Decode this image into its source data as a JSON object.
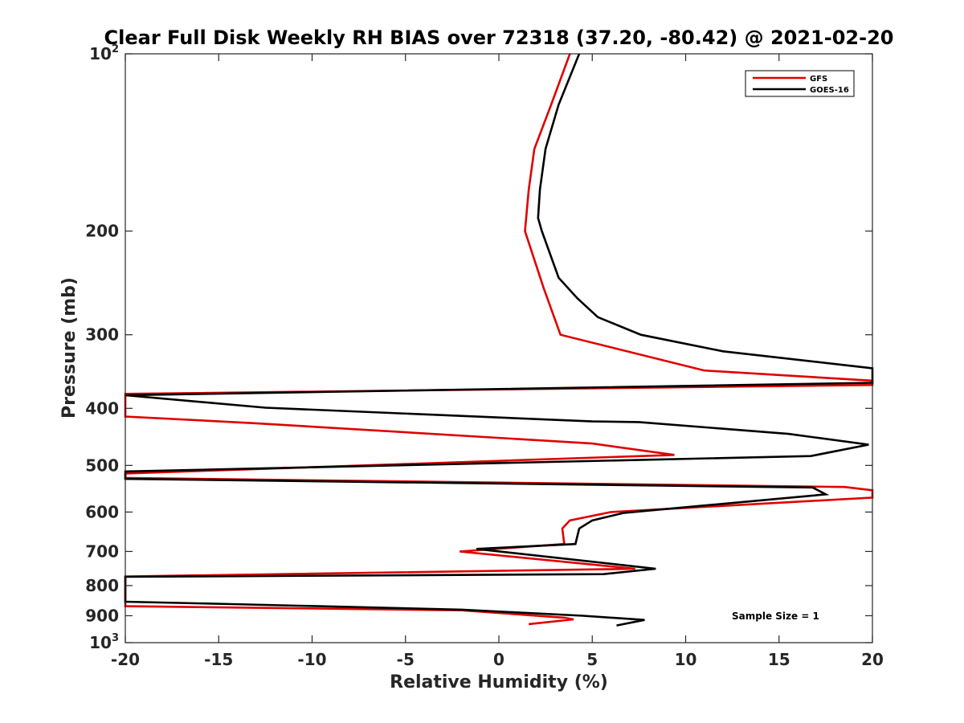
{
  "chart_data": {
    "type": "line",
    "title": "Clear Full Disk Weekly RH BIAS over 72318 (37.20, -80.42) @ 2021-02-20",
    "xlabel": "Relative Humidity (%)",
    "ylabel": "Pressure (mb)",
    "xlim": [
      -20,
      20
    ],
    "ylim": [
      1000,
      100
    ],
    "y_scale": "log",
    "y_reversed": true,
    "grid": false,
    "legend_position": "top-right",
    "x_ticks": [
      "-20",
      "-15",
      "-10",
      "-5",
      "0",
      "5",
      "10",
      "15",
      "20"
    ],
    "y_ticks": [
      {
        "value": 100,
        "base": "10",
        "exp": "2"
      },
      {
        "value": 200,
        "label": "200"
      },
      {
        "value": 300,
        "label": "300"
      },
      {
        "value": 400,
        "label": "400"
      },
      {
        "value": 500,
        "label": "500"
      },
      {
        "value": 600,
        "label": "600"
      },
      {
        "value": 700,
        "label": "700"
      },
      {
        "value": 800,
        "label": "800"
      },
      {
        "value": 900,
        "label": "900"
      },
      {
        "value": 1000,
        "base": "10",
        "exp": "3"
      }
    ],
    "annotation": "Sample Size = 1",
    "series": [
      {
        "name": "GFS",
        "color": "#e00000",
        "points": [
          [
            3.8,
            100
          ],
          [
            2.8,
            122
          ],
          [
            1.9,
            145
          ],
          [
            1.6,
            170
          ],
          [
            1.4,
            200
          ],
          [
            2.4,
            250
          ],
          [
            3.3,
            300
          ],
          [
            11.0,
            345
          ],
          [
            20,
            359
          ],
          [
            20,
            365
          ],
          [
            -20,
            378
          ],
          [
            -20,
            413
          ],
          [
            -13,
            424
          ],
          [
            5,
            459
          ],
          [
            9.4,
            480
          ],
          [
            -20,
            516
          ],
          [
            -20,
            525
          ],
          [
            18.5,
            544
          ],
          [
            20,
            551
          ],
          [
            20,
            567
          ],
          [
            6.0,
            600
          ],
          [
            3.8,
            620
          ],
          [
            3.4,
            640
          ],
          [
            3.5,
            680
          ],
          [
            -2.1,
            700
          ],
          [
            7.3,
            749
          ],
          [
            -20,
            772
          ],
          [
            -20,
            867
          ],
          [
            -2,
            881
          ],
          [
            3.5,
            907
          ],
          [
            4.0,
            913
          ],
          [
            1.6,
            930
          ]
        ]
      },
      {
        "name": "GOES-16",
        "color": "#000000",
        "points": [
          [
            4.3,
            100
          ],
          [
            3.2,
            122
          ],
          [
            2.5,
            145
          ],
          [
            2.2,
            170
          ],
          [
            2.1,
            190
          ],
          [
            2.3,
            200
          ],
          [
            3.2,
            240
          ],
          [
            4.2,
            260
          ],
          [
            5.3,
            280
          ],
          [
            7.6,
            300
          ],
          [
            12.0,
            320
          ],
          [
            20,
            342
          ],
          [
            20,
            362
          ],
          [
            -20,
            380
          ],
          [
            -12.5,
            399
          ],
          [
            5,
            421
          ],
          [
            7.5,
            422
          ],
          [
            15.5,
            442
          ],
          [
            19.8,
            461
          ],
          [
            16.7,
            482
          ],
          [
            -20,
            512
          ],
          [
            -20,
            527
          ],
          [
            16.8,
            545
          ],
          [
            17.5,
            560
          ],
          [
            11.5,
            583
          ],
          [
            6.7,
            602
          ],
          [
            5.0,
            620
          ],
          [
            4.3,
            640
          ],
          [
            4.1,
            680
          ],
          [
            -1.2,
            693
          ],
          [
            8.4,
            749
          ],
          [
            5.6,
            765
          ],
          [
            -20,
            773
          ],
          [
            -20,
            852
          ],
          [
            -14.3,
            860
          ],
          [
            -2,
            879
          ],
          [
            4.5,
            900
          ],
          [
            7.8,
            915
          ],
          [
            6.3,
            935
          ]
        ]
      }
    ]
  }
}
